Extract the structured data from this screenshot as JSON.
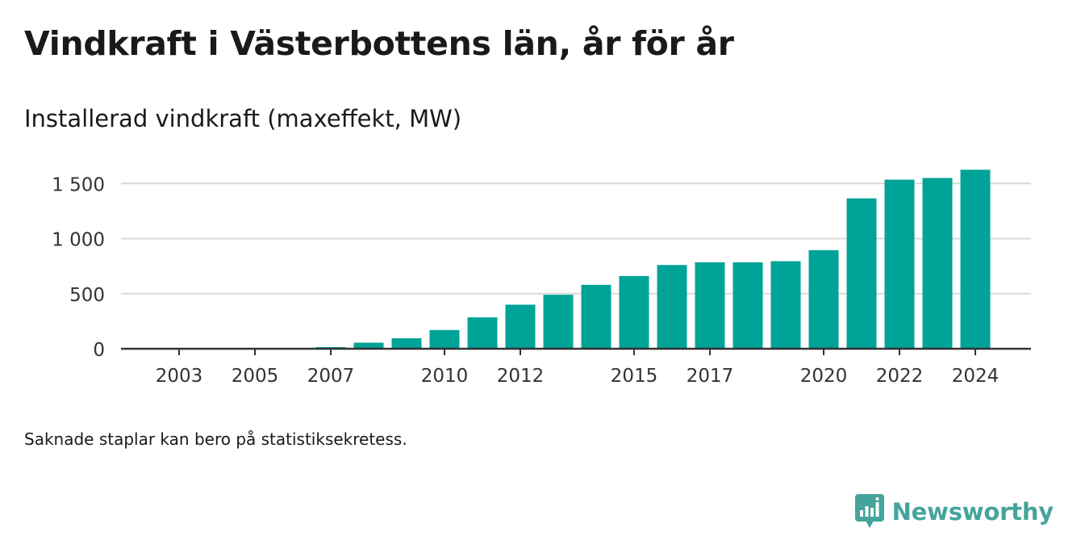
{
  "title": "Vindkraft i Västerbottens län, år för år",
  "subtitle": "Installerad vindkraft (maxeffekt, MW)",
  "note": "Saknade staplar kan bero på statistiksekretess.",
  "brand": {
    "name": "Newsworthy",
    "icon": "newsworthy-logo-icon",
    "color": "#44a49b"
  },
  "colors": {
    "bar": "#00a398",
    "grid": "#d9d9d9",
    "axis": "#333333"
  },
  "chart_data": {
    "type": "bar",
    "title": "Vindkraft i Västerbottens län, år för år",
    "subtitle": "Installerad vindkraft (maxeffekt, MW)",
    "xlabel": "",
    "ylabel": "",
    "categories": [
      "2003",
      "2004",
      "2005",
      "2006",
      "2007",
      "2008",
      "2009",
      "2010",
      "2011",
      "2012",
      "2013",
      "2014",
      "2015",
      "2016",
      "2017",
      "2018",
      "2019",
      "2020",
      "2021",
      "2022",
      "2023",
      "2024"
    ],
    "values": [
      2,
      2,
      2,
      2,
      15,
      55,
      95,
      170,
      285,
      400,
      490,
      580,
      660,
      760,
      785,
      785,
      795,
      895,
      1365,
      1535,
      1550,
      1625
    ],
    "x_tick_labels": [
      "2003",
      "2005",
      "2007",
      "2010",
      "2012",
      "2015",
      "2017",
      "2020",
      "2022",
      "2024"
    ],
    "y_ticks": [
      0,
      500,
      1000,
      1500
    ],
    "y_tick_labels": [
      "0",
      "500",
      "1 000",
      "1 500"
    ],
    "ylim": [
      0,
      1700
    ],
    "grid": true,
    "legend": "none"
  }
}
